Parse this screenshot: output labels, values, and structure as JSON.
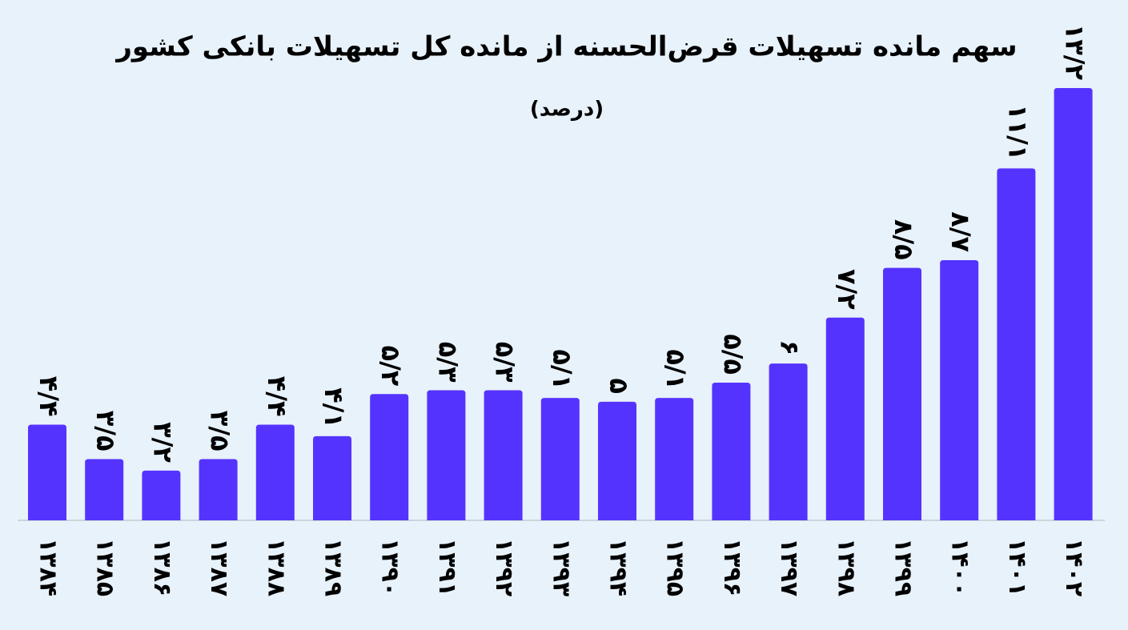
{
  "chart_data": {
    "type": "bar",
    "title": "سهم مانده تسهیلات قرض‌الحسنه از مانده کل تسهیلات بانکی کشور",
    "subtitle": "(درصد)",
    "categories": [
      "۱۳۸۴",
      "۱۳۸۵",
      "۱۳۸۶",
      "۱۳۸۷",
      "۱۳۸۸",
      "۱۳۸۹",
      "۱۳۹۰",
      "۱۳۹۱",
      "۱۳۹۲",
      "۱۳۹۳",
      "۱۳۹۴",
      "۱۳۹۵",
      "۱۳۹۶",
      "۱۳۹۷",
      "۱۳۹۸",
      "۱۳۹۹",
      "۱۴۰۰",
      "۱۴۰۱",
      "۱۴۰۲"
    ],
    "values": [
      4.4,
      3.5,
      3.2,
      3.5,
      4.4,
      4.1,
      5.2,
      5.3,
      5.3,
      5.1,
      5,
      5.1,
      5.5,
      6,
      7.2,
      8.5,
      8.7,
      11.1,
      13.2
    ],
    "value_labels": [
      "۴/۴",
      "۳/۵",
      "۳/۲",
      "۳/۵",
      "۴/۴",
      "۴/۱",
      "۵/۲",
      "۵/۳",
      "۵/۳",
      "۵/۱",
      "۵",
      "۵/۱",
      "۵/۵",
      "۶",
      "۷/۲",
      "۸/۵",
      "۸/۷",
      "۱۱/۱",
      "۱۳/۲"
    ],
    "color": "#5533ff",
    "ylim": [
      1.9,
      13.2
    ]
  }
}
